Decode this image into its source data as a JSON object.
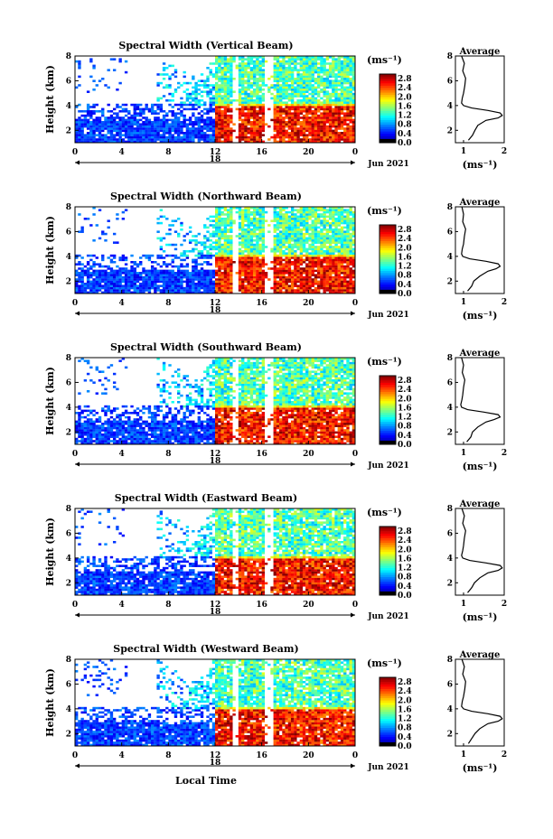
{
  "chart_data": [
    {
      "type": "heatmap",
      "title": "Spectral Width (Vertical Beam)",
      "ylabel": "Height (km)",
      "xlabel": "",
      "x_ticks": [
        "0",
        "4",
        "8",
        "12",
        "16",
        "20",
        "0"
      ],
      "x_date_label": "18",
      "date_label": "Jun 2021",
      "y_ticks": [
        "2",
        "4",
        "6",
        "8"
      ],
      "xlim": [
        0,
        24
      ],
      "ylim": [
        1,
        8
      ],
      "colorbar": {
        "unit": "(ms⁻¹)",
        "ticks": [
          "0.0",
          "0.4",
          "0.8",
          "1.2",
          "1.6",
          "2.0",
          "2.4",
          "2.8"
        ],
        "range": [
          0,
          3.0
        ]
      },
      "profile": {
        "title": "Average",
        "xlabel": "(ms⁻¹)",
        "x_ticks": [
          "1",
          "2"
        ],
        "xlim": [
          0.8,
          2.0
        ],
        "y_ticks": [
          "2",
          "4",
          "6",
          "8"
        ],
        "ylim": [
          1,
          8
        ],
        "height": [
          1.2,
          1.6,
          2.0,
          2.4,
          2.8,
          3.0,
          3.2,
          3.4,
          3.6,
          3.8,
          4.0,
          4.2,
          4.6,
          5.0,
          5.6,
          6.2,
          6.8,
          7.4,
          8.0
        ],
        "value": [
          1.12,
          1.22,
          1.28,
          1.35,
          1.55,
          1.85,
          1.95,
          1.9,
          1.6,
          1.2,
          1.0,
          0.95,
          0.97,
          1.0,
          1.03,
          1.05,
          0.98,
          1.02,
          0.95
        ]
      }
    },
    {
      "type": "heatmap",
      "title": "Spectral Width (Northward Beam)",
      "ylabel": "Height (km)",
      "xlabel": "",
      "x_ticks": [
        "0",
        "4",
        "8",
        "12",
        "16",
        "20",
        "0"
      ],
      "x_date_label": "18",
      "date_label": "Jun 2021",
      "y_ticks": [
        "2",
        "4",
        "6",
        "8"
      ],
      "xlim": [
        0,
        24
      ],
      "ylim": [
        1,
        8
      ],
      "colorbar": {
        "unit": "(ms⁻¹)",
        "ticks": [
          "0.0",
          "0.4",
          "0.8",
          "1.2",
          "1.6",
          "2.0",
          "2.4",
          "2.8"
        ],
        "range": [
          0,
          3.0
        ]
      },
      "profile": {
        "title": "Average",
        "xlabel": "(ms⁻¹)",
        "x_ticks": [
          "1",
          "2"
        ],
        "xlim": [
          0.8,
          2.0
        ],
        "y_ticks": [
          "2",
          "4",
          "6",
          "8"
        ],
        "ylim": [
          1,
          8
        ],
        "height": [
          1.2,
          1.6,
          2.0,
          2.4,
          2.8,
          3.0,
          3.2,
          3.4,
          3.6,
          3.8,
          4.0,
          4.2,
          4.6,
          5.0,
          5.6,
          6.2,
          6.8,
          7.4,
          8.0
        ],
        "value": [
          1.1,
          1.2,
          1.25,
          1.4,
          1.6,
          1.8,
          1.9,
          1.85,
          1.55,
          1.15,
          0.98,
          0.95,
          0.97,
          1.0,
          1.02,
          1.05,
          0.98,
          1.0,
          0.96
        ]
      }
    },
    {
      "type": "heatmap",
      "title": "Spectral Width (Southward Beam)",
      "ylabel": "Height (km)",
      "xlabel": "",
      "x_ticks": [
        "0",
        "4",
        "8",
        "12",
        "16",
        "20",
        "0"
      ],
      "x_date_label": "18",
      "date_label": "Jun 2021",
      "y_ticks": [
        "2",
        "4",
        "6",
        "8"
      ],
      "xlim": [
        0,
        24
      ],
      "ylim": [
        1,
        8
      ],
      "colorbar": {
        "unit": "(ms⁻¹)",
        "ticks": [
          "0.0",
          "0.4",
          "0.8",
          "1.2",
          "1.6",
          "2.0",
          "2.4",
          "2.8"
        ],
        "range": [
          0,
          3.0
        ]
      },
      "profile": {
        "title": "Average",
        "xlabel": "(ms⁻¹)",
        "x_ticks": [
          "1",
          "2"
        ],
        "xlim": [
          0.8,
          2.0
        ],
        "y_ticks": [
          "2",
          "4",
          "6",
          "8"
        ],
        "ylim": [
          1,
          8
        ],
        "height": [
          1.2,
          1.6,
          2.0,
          2.4,
          2.8,
          3.0,
          3.2,
          3.4,
          3.6,
          3.8,
          4.0,
          4.2,
          4.6,
          5.0,
          5.6,
          6.2,
          6.8,
          7.4,
          8.0
        ],
        "value": [
          1.08,
          1.18,
          1.22,
          1.35,
          1.55,
          1.75,
          1.9,
          1.85,
          1.5,
          1.1,
          0.95,
          0.93,
          0.96,
          0.98,
          1.0,
          1.03,
          0.97,
          1.0,
          0.95
        ]
      }
    },
    {
      "type": "heatmap",
      "title": "Spectral Width (Eastward Beam)",
      "ylabel": "Height (km)",
      "xlabel": "",
      "x_ticks": [
        "0",
        "4",
        "8",
        "12",
        "16",
        "20",
        "0"
      ],
      "x_date_label": "18",
      "date_label": "Jun 2021",
      "y_ticks": [
        "2",
        "4",
        "6",
        "8"
      ],
      "xlim": [
        0,
        24
      ],
      "ylim": [
        1,
        8
      ],
      "colorbar": {
        "unit": "(ms⁻¹)",
        "ticks": [
          "0.0",
          "0.4",
          "0.8",
          "1.2",
          "1.6",
          "2.0",
          "2.4",
          "2.8"
        ],
        "range": [
          0,
          3.0
        ]
      },
      "profile": {
        "title": "Average",
        "xlabel": "(ms⁻¹)",
        "x_ticks": [
          "1",
          "2"
        ],
        "xlim": [
          0.8,
          2.0
        ],
        "y_ticks": [
          "2",
          "4",
          "6",
          "8"
        ],
        "ylim": [
          1,
          8
        ],
        "height": [
          1.2,
          1.6,
          2.0,
          2.4,
          2.8,
          3.0,
          3.2,
          3.4,
          3.6,
          3.8,
          4.0,
          4.2,
          4.6,
          5.0,
          5.6,
          6.2,
          6.8,
          7.4,
          8.0
        ],
        "value": [
          1.1,
          1.2,
          1.27,
          1.4,
          1.6,
          1.85,
          1.95,
          1.9,
          1.55,
          1.15,
          0.98,
          0.95,
          0.98,
          1.0,
          1.02,
          1.05,
          0.98,
          1.02,
          0.96
        ]
      }
    },
    {
      "type": "heatmap",
      "title": "Spectral Width (Westward Beam)",
      "ylabel": "Height (km)",
      "xlabel": "Local Time",
      "x_ticks": [
        "0",
        "4",
        "8",
        "12",
        "16",
        "20",
        "0"
      ],
      "x_date_label": "18",
      "date_label": "Jun 2021",
      "y_ticks": [
        "2",
        "4",
        "6",
        "8"
      ],
      "xlim": [
        0,
        24
      ],
      "ylim": [
        1,
        8
      ],
      "colorbar": {
        "unit": "(ms⁻¹)",
        "ticks": [
          "0.0",
          "0.4",
          "0.8",
          "1.2",
          "1.6",
          "2.0",
          "2.4",
          "2.8"
        ],
        "range": [
          0,
          3.0
        ]
      },
      "profile": {
        "title": "Average",
        "xlabel": "(ms⁻¹)",
        "x_ticks": [
          "1",
          "2"
        ],
        "xlim": [
          0.8,
          2.0
        ],
        "y_ticks": [
          "2",
          "4",
          "6",
          "8"
        ],
        "ylim": [
          1,
          8
        ],
        "height": [
          1.2,
          1.6,
          2.0,
          2.4,
          2.8,
          3.0,
          3.2,
          3.4,
          3.6,
          3.8,
          4.0,
          4.2,
          4.6,
          5.0,
          5.6,
          6.2,
          6.8,
          7.4,
          8.0
        ],
        "value": [
          1.12,
          1.2,
          1.28,
          1.4,
          1.6,
          1.85,
          1.95,
          1.9,
          1.6,
          1.2,
          1.0,
          0.95,
          0.97,
          1.0,
          1.03,
          1.05,
          0.98,
          1.02,
          0.96
        ]
      }
    }
  ]
}
